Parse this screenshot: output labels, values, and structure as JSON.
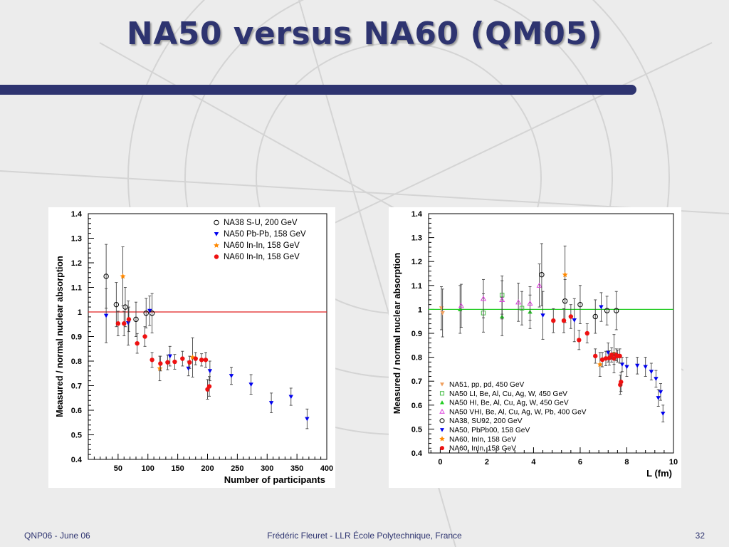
{
  "slide": {
    "title": "NA50 versus NA60 (QM05)",
    "footer_left": "QNP06 - June 06",
    "footer_center": "Frédéric Fleuret - LLR École Polytechnique, France",
    "page_number": "32",
    "accent_color": "#2e3470"
  },
  "chart_data": [
    {
      "type": "scatter",
      "ylabel": "Measured / normal nuclear absorption",
      "xlabel": "Number of participants",
      "xlim": [
        0,
        400
      ],
      "ylim": [
        0.4,
        1.4
      ],
      "xticks": [
        50,
        100,
        150,
        200,
        250,
        300,
        350,
        400
      ],
      "yticks": [
        0.4,
        0.5,
        0.6,
        0.7,
        0.8,
        0.9,
        1,
        1.1,
        1.2,
        1.3,
        1.4
      ],
      "reference_line": {
        "y": 1,
        "color": "#e02020"
      },
      "legend_position": "top-right",
      "series": [
        {
          "name": "NA38 S-U, 200 GeV",
          "marker": "circle-open",
          "color": "#000000",
          "points": [
            [
              30,
              1.145,
              0.13
            ],
            [
              47,
              1.03,
              0.09
            ],
            [
              62,
              1.02,
              0.08
            ],
            [
              80,
              0.97,
              0.07
            ],
            [
              97,
              0.995,
              0.06
            ],
            [
              107,
              0.995,
              0.08
            ]
          ]
        },
        {
          "name": "NA50 Pb-Pb, 158 GeV",
          "marker": "triangle-down",
          "color": "#0000ee",
          "points": [
            [
              30,
              0.985,
              0.11
            ],
            [
              67,
              0.955,
              0.09
            ],
            [
              103,
              1.005,
              0.06
            ],
            [
              137,
              0.82,
              0.04
            ],
            [
              168,
              0.77,
              0.03
            ],
            [
              204,
              0.76,
              0.04
            ],
            [
              240,
              0.74,
              0.035
            ],
            [
              273,
              0.705,
              0.04
            ],
            [
              307,
              0.63,
              0.04
            ],
            [
              340,
              0.655,
              0.035
            ],
            [
              367,
              0.565,
              0.04
            ]
          ]
        },
        {
          "name": "NA60 In-In, 158 GeV",
          "marker": "star",
          "color": "#ff8800",
          "points": [
            [
              58,
              1.145,
              0.12
            ],
            [
              120,
              0.77,
              0.05
            ],
            [
              175,
              0.815,
              0.08
            ]
          ]
        },
        {
          "name": "NA60 In-In, 158 GeV",
          "marker": "circle-filled",
          "color": "#ee1111",
          "points": [
            [
              50,
              0.953,
              0.05
            ],
            [
              60,
              0.953,
              0.05
            ],
            [
              68,
              0.97,
              0.05
            ],
            [
              82,
              0.872,
              0.04
            ],
            [
              95,
              0.9,
              0.04
            ],
            [
              107,
              0.805,
              0.03
            ],
            [
              121,
              0.79,
              0.03
            ],
            [
              133,
              0.795,
              0.03
            ],
            [
              145,
              0.797,
              0.03
            ],
            [
              158,
              0.81,
              0.03
            ],
            [
              170,
              0.795,
              0.025
            ],
            [
              180,
              0.81,
              0.025
            ],
            [
              190,
              0.805,
              0.025
            ],
            [
              197,
              0.805,
              0.03
            ],
            [
              200,
              0.685,
              0.04
            ],
            [
              203,
              0.697,
              0.04
            ]
          ]
        }
      ]
    },
    {
      "type": "scatter",
      "ylabel": "Measured / normal nuclear absorption",
      "xlabel": "L (fm)",
      "xlim": [
        -0.5,
        10
      ],
      "ylim": [
        0.4,
        1.4
      ],
      "xticks": [
        0,
        2,
        4,
        6,
        8,
        10
      ],
      "yticks": [
        0.4,
        0.5,
        0.6,
        0.7,
        0.8,
        0.9,
        1,
        1.1,
        1.2,
        1.3,
        1.4
      ],
      "reference_line": {
        "y": 1,
        "color": "#22cc22"
      },
      "legend_position": "bottom-left",
      "series": [
        {
          "name": "NA51, pp, pd, 450 GeV",
          "marker": "triangle-down",
          "color": "#f0a060",
          "points": [
            [
              0.05,
              1.005,
              0.09
            ],
            [
              0.1,
              0.985,
              0.1
            ]
          ]
        },
        {
          "name": "NA50 LI, Be, Al, Cu, Ag, W, 450 GeV",
          "marker": "square-open",
          "color": "#44bb44",
          "points": [
            [
              1.85,
              0.985,
              0.08
            ],
            [
              2.65,
              1.06,
              0.08
            ],
            [
              3.5,
              1.005,
              0.07
            ]
          ]
        },
        {
          "name": "NA50 HI, Be, Al, Cu, Ag, W, 450 GeV",
          "marker": "triangle-up",
          "color": "#22cc22",
          "points": [
            [
              0.85,
              1.0,
              0.1
            ],
            [
              2.65,
              0.97,
              0.08
            ],
            [
              3.85,
              0.99,
              0.07
            ]
          ]
        },
        {
          "name": "NA50 VHI, Be, Al, Cu, Ag, W, Pb, 400 GeV",
          "marker": "triangle-up-open",
          "color": "#dd44dd",
          "points": [
            [
              0.9,
              1.015,
              0.09
            ],
            [
              1.85,
              1.045,
              0.08
            ],
            [
              2.65,
              1.04,
              0.08
            ],
            [
              3.35,
              1.03,
              0.08
            ],
            [
              3.85,
              1.025,
              0.07
            ],
            [
              4.25,
              1.1,
              0.09
            ]
          ]
        },
        {
          "name": "NA38, SU92, 200 GeV",
          "marker": "circle-open",
          "color": "#000000",
          "points": [
            [
              4.35,
              1.145,
              0.13
            ],
            [
              5.35,
              1.035,
              0.09
            ],
            [
              6.0,
              1.02,
              0.08
            ],
            [
              6.65,
              0.97,
              0.07
            ],
            [
              7.15,
              0.995,
              0.06
            ],
            [
              7.55,
              0.995,
              0.08
            ]
          ]
        },
        {
          "name": "NA50, PbPb00, 158 GeV",
          "marker": "triangle-down",
          "color": "#0000ee",
          "points": [
            [
              4.4,
              0.975,
              0.1
            ],
            [
              5.75,
              0.955,
              0.09
            ],
            [
              6.9,
              1.01,
              0.06
            ],
            [
              7.2,
              0.82,
              0.04
            ],
            [
              7.8,
              0.77,
              0.03
            ],
            [
              8.0,
              0.76,
              0.04
            ],
            [
              8.45,
              0.765,
              0.035
            ],
            [
              8.8,
              0.76,
              0.04
            ],
            [
              9.05,
              0.74,
              0.035
            ],
            [
              9.25,
              0.71,
              0.035
            ],
            [
              9.35,
              0.63,
              0.035
            ],
            [
              9.45,
              0.655,
              0.035
            ],
            [
              9.55,
              0.565,
              0.035
            ]
          ]
        },
        {
          "name": "NA60, InIn, 158 GeV",
          "marker": "star",
          "color": "#ff8800",
          "points": [
            [
              5.35,
              1.145,
              0.12
            ],
            [
              6.85,
              0.77,
              0.05
            ],
            [
              7.45,
              0.815,
              0.08
            ]
          ]
        },
        {
          "name": "NA60, InIn, 158 GeV",
          "marker": "circle-filled",
          "color": "#ee1111",
          "points": [
            [
              4.85,
              0.953,
              0.05
            ],
            [
              5.3,
              0.953,
              0.05
            ],
            [
              5.6,
              0.97,
              0.05
            ],
            [
              5.95,
              0.872,
              0.04
            ],
            [
              6.3,
              0.9,
              0.04
            ],
            [
              6.65,
              0.805,
              0.03
            ],
            [
              6.95,
              0.79,
              0.03
            ],
            [
              7.1,
              0.795,
              0.03
            ],
            [
              7.25,
              0.797,
              0.03
            ],
            [
              7.35,
              0.81,
              0.03
            ],
            [
              7.45,
              0.795,
              0.025
            ],
            [
              7.55,
              0.81,
              0.025
            ],
            [
              7.6,
              0.805,
              0.025
            ],
            [
              7.7,
              0.805,
              0.03
            ],
            [
              7.72,
              0.685,
              0.04
            ],
            [
              7.75,
              0.697,
              0.04
            ]
          ]
        }
      ]
    }
  ]
}
